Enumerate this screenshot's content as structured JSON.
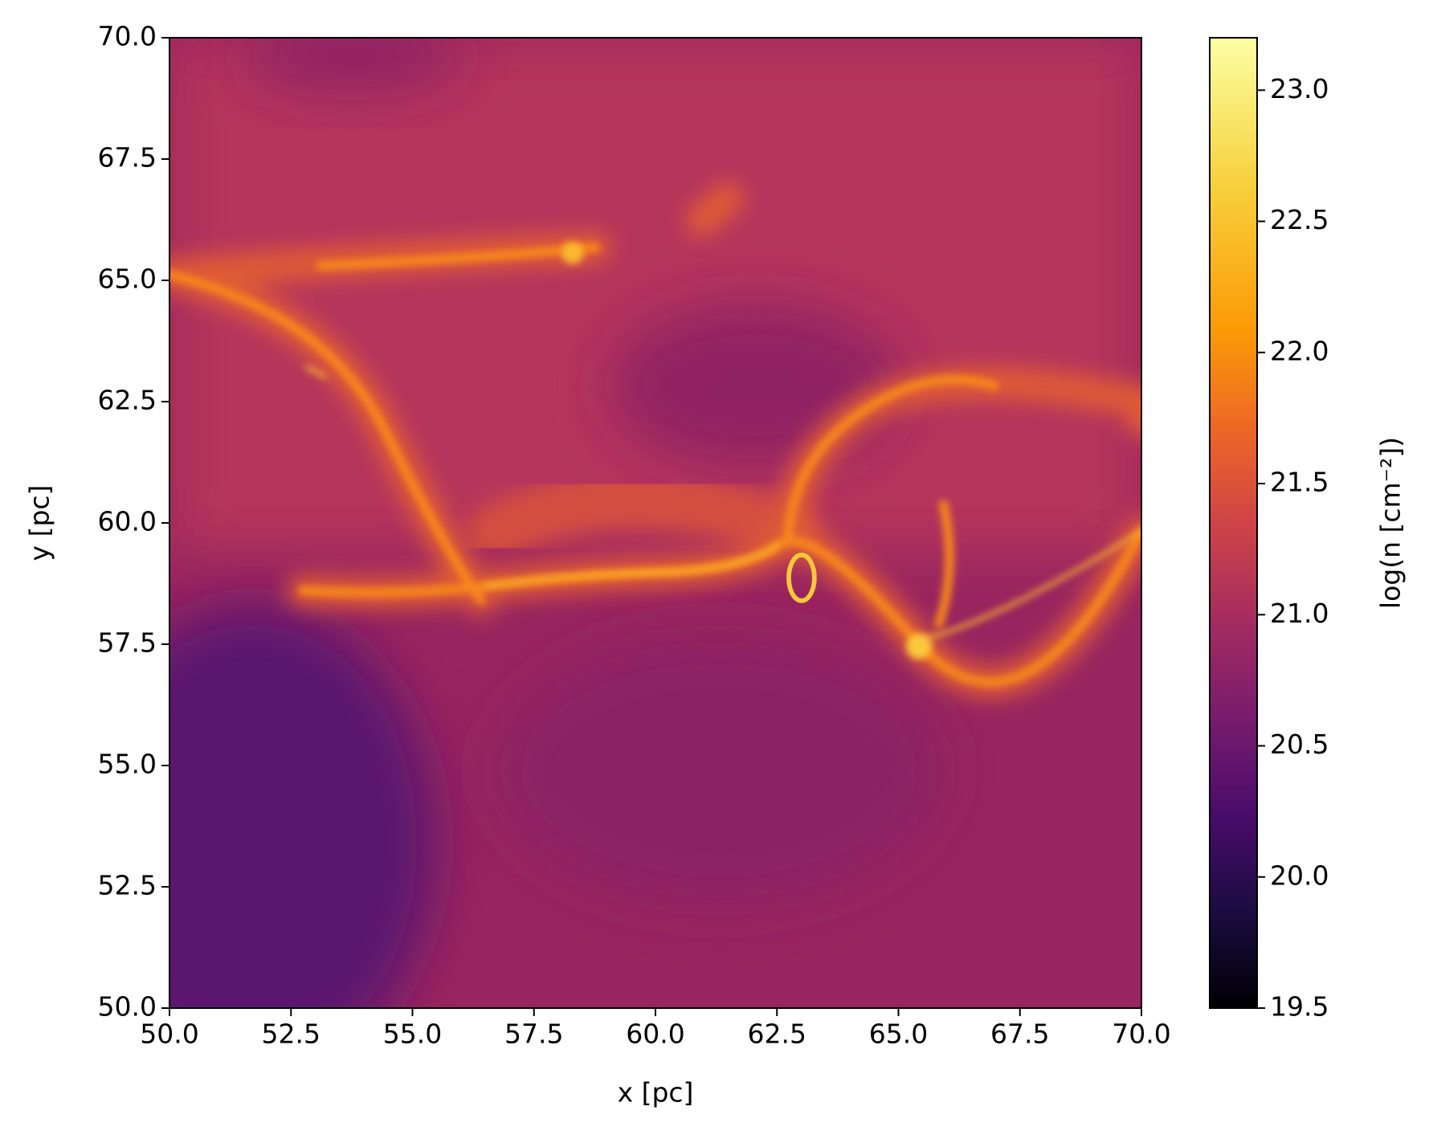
{
  "chart_data": {
    "type": "heatmap",
    "xlabel": "x [pc]",
    "ylabel": "y [pc]",
    "xlim": [
      50,
      70
    ],
    "ylim": [
      50,
      70
    ],
    "xticks": [
      {
        "value": 50,
        "label": "50.0"
      },
      52.5,
      {
        "value": 55,
        "label": "55.0"
      },
      57.5,
      {
        "value": 60,
        "label": "60.0"
      },
      62.5,
      {
        "value": 65,
        "label": "65.0"
      },
      67.5,
      {
        "value": 70,
        "label": "70.0"
      }
    ],
    "yticks": [
      {
        "value": 50,
        "label": "50.0"
      },
      52.5,
      {
        "value": 55,
        "label": "55.0"
      },
      57.5,
      {
        "value": 60,
        "label": "60.0"
      },
      62.5,
      {
        "value": 65,
        "label": "65.0"
      },
      67.5,
      {
        "value": 70,
        "label": "70.0"
      }
    ],
    "colorbar": {
      "label": "log(n [cm⁻²])",
      "lim": [
        19.5,
        23.2
      ],
      "ticks": [
        19.5,
        {
          "value": 20,
          "label": "20.0"
        },
        20.5,
        {
          "value": 21,
          "label": "21.0"
        },
        21.5,
        {
          "value": 22,
          "label": "22.0"
        },
        22.5,
        {
          "value": 23,
          "label": "23.0"
        }
      ]
    }
  }
}
